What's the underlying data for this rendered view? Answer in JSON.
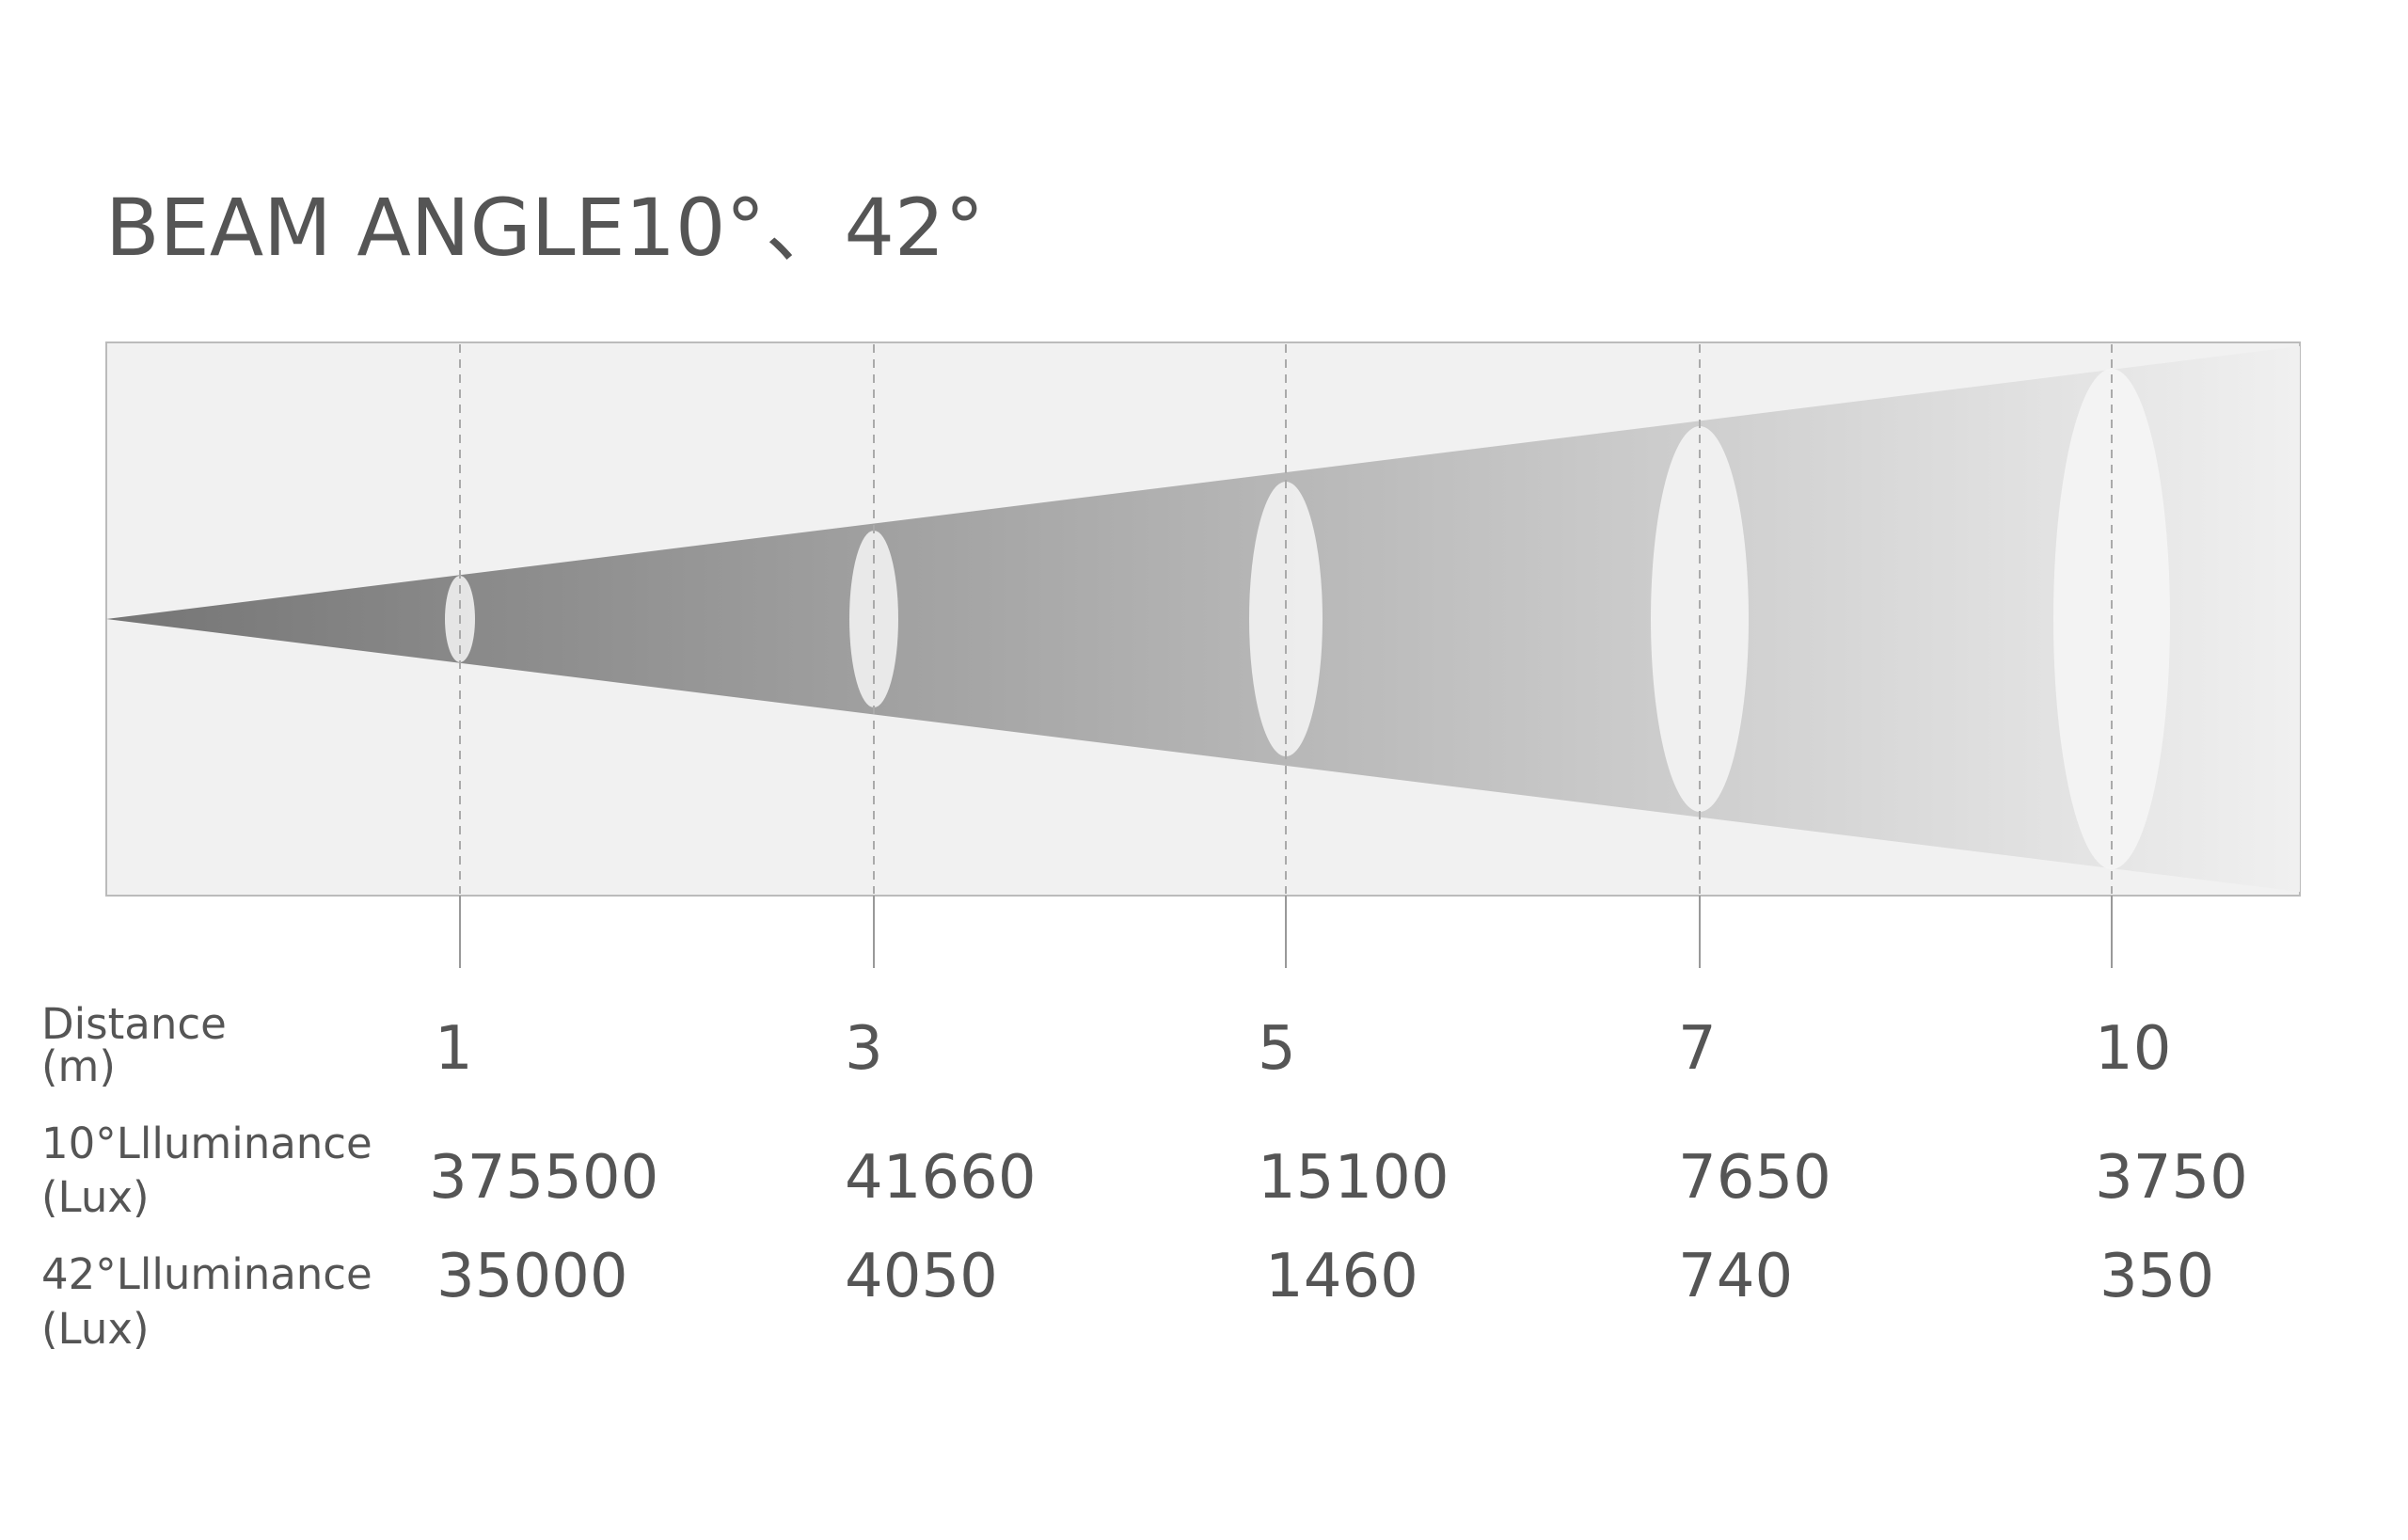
{
  "header": {
    "title": "BEAM ANGLE10°、42°"
  },
  "table": {
    "rows": [
      {
        "label": [
          "Distance",
          "(m)"
        ],
        "values": [
          "1",
          "3",
          "5",
          "7",
          "10"
        ]
      },
      {
        "label": [
          "10°Llluminance",
          "(Lux)"
        ],
        "values": [
          "375500",
          "41660",
          "15100",
          "7650",
          "3750"
        ]
      },
      {
        "label": [
          "42°Llluminance",
          "(Lux)"
        ],
        "values": [
          "35000",
          "4050",
          "1460",
          "740",
          "350"
        ]
      }
    ]
  }
}
